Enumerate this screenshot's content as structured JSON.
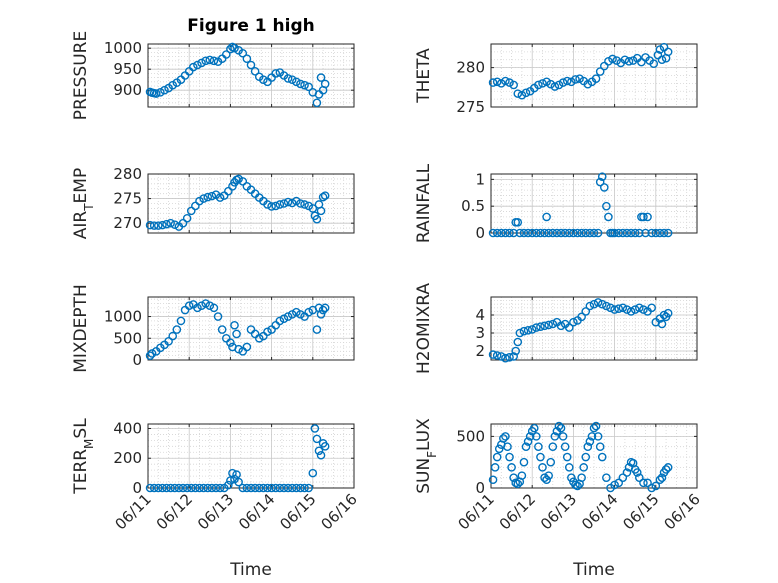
{
  "figure_title": "Figure 1 high",
  "xlabel": "Time",
  "x_ticks": [
    "06/11",
    "06/12",
    "06/13",
    "06/14",
    "06/15",
    "06/16"
  ],
  "marker_color": "#0072BD",
  "chart_data": [
    {
      "id": "pressure",
      "type": "scatter",
      "title": "Figure 1 high",
      "ylabel": "PRESSURE",
      "xlim": [
        0,
        5
      ],
      "ylim": [
        860,
        1010
      ],
      "yticks": [
        900,
        950,
        1000
      ],
      "grid": true,
      "minor_grid": true,
      "x": [
        0.05,
        0.1,
        0.15,
        0.2,
        0.3,
        0.4,
        0.5,
        0.6,
        0.7,
        0.8,
        0.9,
        1.0,
        1.1,
        1.2,
        1.3,
        1.4,
        1.5,
        1.6,
        1.7,
        1.8,
        1.9,
        2.0,
        2.05,
        2.1,
        2.2,
        2.3,
        2.4,
        2.5,
        2.6,
        2.7,
        2.8,
        2.9,
        3.0,
        3.1,
        3.2,
        3.3,
        3.4,
        3.5,
        3.6,
        3.7,
        3.8,
        3.9,
        4.0,
        4.1,
        4.15,
        4.2,
        4.25,
        4.3
      ],
      "y": [
        896,
        894,
        893,
        892,
        895,
        900,
        905,
        912,
        918,
        925,
        935,
        945,
        955,
        960,
        965,
        970,
        972,
        970,
        968,
        975,
        985,
        998,
        1003,
        1000,
        995,
        988,
        975,
        960,
        945,
        932,
        925,
        920,
        930,
        940,
        942,
        935,
        928,
        925,
        920,
        915,
        912,
        908,
        895,
        870,
        890,
        930,
        900,
        915
      ]
    },
    {
      "id": "theta",
      "type": "scatter",
      "ylabel": "THETA",
      "xlim": [
        0,
        5
      ],
      "ylim": [
        275,
        283
      ],
      "yticks": [
        275,
        280
      ],
      "grid": true,
      "minor_grid": true,
      "x": [
        0.05,
        0.15,
        0.25,
        0.35,
        0.45,
        0.55,
        0.65,
        0.75,
        0.85,
        0.95,
        1.05,
        1.15,
        1.25,
        1.35,
        1.45,
        1.55,
        1.65,
        1.75,
        1.85,
        1.95,
        2.05,
        2.15,
        2.25,
        2.35,
        2.45,
        2.55,
        2.65,
        2.75,
        2.85,
        2.95,
        3.05,
        3.15,
        3.25,
        3.35,
        3.45,
        3.55,
        3.65,
        3.75,
        3.85,
        3.95,
        4.05,
        4.1,
        4.15,
        4.2,
        4.25,
        4.3
      ],
      "y": [
        278.1,
        278.2,
        278.0,
        278.3,
        278.1,
        277.8,
        276.7,
        276.5,
        276.8,
        277.0,
        277.4,
        277.8,
        278.0,
        278.2,
        277.9,
        277.6,
        277.8,
        278.1,
        278.3,
        278.2,
        278.5,
        278.6,
        278.3,
        277.9,
        278.2,
        278.6,
        279.5,
        280.2,
        280.8,
        281.1,
        280.9,
        280.6,
        281.0,
        280.8,
        280.9,
        281.2,
        280.7,
        281.3,
        280.9,
        280.5,
        281.6,
        282.3,
        281.0,
        282.6,
        281.2,
        282.0
      ]
    },
    {
      "id": "air_temp",
      "type": "scatter",
      "ylabel": "AIR_TEMP",
      "xlim": [
        0,
        5
      ],
      "ylim": [
        268,
        280
      ],
      "yticks": [
        270,
        275,
        280
      ],
      "grid": true,
      "minor_grid": true,
      "x": [
        0.05,
        0.15,
        0.25,
        0.35,
        0.45,
        0.55,
        0.65,
        0.75,
        0.85,
        0.95,
        1.05,
        1.15,
        1.25,
        1.35,
        1.45,
        1.55,
        1.65,
        1.75,
        1.85,
        1.95,
        2.05,
        2.1,
        2.15,
        2.2,
        2.3,
        2.4,
        2.5,
        2.6,
        2.7,
        2.8,
        2.9,
        3.0,
        3.1,
        3.2,
        3.3,
        3.4,
        3.5,
        3.6,
        3.7,
        3.8,
        3.9,
        4.0,
        4.05,
        4.1,
        4.15,
        4.2,
        4.25,
        4.3
      ],
      "y": [
        269.6,
        269.5,
        269.5,
        269.6,
        269.8,
        270.0,
        269.7,
        269.3,
        270.0,
        271.0,
        272.5,
        273.5,
        274.5,
        275.0,
        275.3,
        275.5,
        275.8,
        275.2,
        275.6,
        276.5,
        277.5,
        278.3,
        278.8,
        279.0,
        278.5,
        277.5,
        276.8,
        276.0,
        275.2,
        274.5,
        273.8,
        273.4,
        273.5,
        273.8,
        274.0,
        274.3,
        274.1,
        274.5,
        274.0,
        273.8,
        273.5,
        273.0,
        271.5,
        270.8,
        273.8,
        272.5,
        275.3,
        275.6
      ]
    },
    {
      "id": "rainfall",
      "type": "scatter",
      "ylabel": "RAINFALL",
      "xlim": [
        0,
        5
      ],
      "ylim": [
        0,
        1.1
      ],
      "yticks": [
        0,
        0.5,
        1
      ],
      "grid": true,
      "minor_grid": true,
      "x": [
        0.05,
        0.15,
        0.25,
        0.35,
        0.45,
        0.55,
        0.6,
        0.65,
        0.7,
        0.8,
        0.9,
        1.0,
        1.1,
        1.2,
        1.3,
        1.35,
        1.4,
        1.5,
        1.6,
        1.7,
        1.8,
        1.9,
        2.0,
        2.1,
        2.2,
        2.3,
        2.4,
        2.5,
        2.6,
        2.65,
        2.7,
        2.75,
        2.8,
        2.85,
        2.9,
        2.95,
        3.0,
        3.1,
        3.2,
        3.3,
        3.4,
        3.5,
        3.6,
        3.65,
        3.7,
        3.75,
        3.8,
        3.9,
        4.0,
        4.1,
        4.2,
        4.3
      ],
      "y": [
        0,
        0,
        0,
        0,
        0,
        0,
        0.2,
        0.2,
        0,
        0,
        0,
        0,
        0,
        0,
        0,
        0.3,
        0,
        0,
        0,
        0,
        0,
        0,
        0,
        0,
        0,
        0,
        0,
        0,
        0,
        0.95,
        1.05,
        0.85,
        0.5,
        0.3,
        0,
        0,
        0,
        0,
        0,
        0,
        0,
        0,
        0,
        0.3,
        0.3,
        0,
        0.3,
        0,
        0,
        0,
        0,
        0
      ]
    },
    {
      "id": "mixdepth",
      "type": "scatter",
      "ylabel": "MIXDEPTH",
      "xlim": [
        0,
        5
      ],
      "ylim": [
        0,
        1450
      ],
      "yticks": [
        0,
        500,
        1000
      ],
      "grid": true,
      "minor_grid": true,
      "x": [
        0.05,
        0.1,
        0.2,
        0.3,
        0.4,
        0.5,
        0.6,
        0.7,
        0.8,
        0.9,
        1.0,
        1.1,
        1.2,
        1.3,
        1.4,
        1.5,
        1.6,
        1.7,
        1.8,
        1.9,
        2.0,
        2.05,
        2.1,
        2.15,
        2.2,
        2.3,
        2.4,
        2.5,
        2.6,
        2.7,
        2.8,
        2.9,
        3.0,
        3.1,
        3.2,
        3.3,
        3.4,
        3.5,
        3.6,
        3.7,
        3.8,
        3.9,
        4.0,
        4.1,
        4.15,
        4.2,
        4.25,
        4.3
      ],
      "y": [
        100,
        150,
        200,
        280,
        350,
        430,
        550,
        700,
        900,
        1150,
        1250,
        1280,
        1200,
        1250,
        1300,
        1250,
        1200,
        1000,
        700,
        500,
        400,
        300,
        800,
        600,
        250,
        200,
        300,
        700,
        600,
        500,
        550,
        650,
        700,
        800,
        900,
        950,
        1000,
        1050,
        1100,
        1050,
        1000,
        1100,
        1150,
        700,
        1200,
        1050,
        1150,
        1200
      ]
    },
    {
      "id": "h2omixra",
      "type": "scatter",
      "ylabel": "H2OMIXRA",
      "xlim": [
        0,
        5
      ],
      "ylim": [
        1.5,
        5
      ],
      "yticks": [
        2,
        3,
        4
      ],
      "grid": true,
      "minor_grid": true,
      "x": [
        0.05,
        0.15,
        0.25,
        0.35,
        0.45,
        0.55,
        0.6,
        0.65,
        0.7,
        0.8,
        0.9,
        1.0,
        1.1,
        1.2,
        1.3,
        1.4,
        1.5,
        1.6,
        1.7,
        1.8,
        1.9,
        2.0,
        2.1,
        2.2,
        2.3,
        2.4,
        2.5,
        2.6,
        2.7,
        2.8,
        2.9,
        3.0,
        3.1,
        3.2,
        3.3,
        3.4,
        3.5,
        3.6,
        3.7,
        3.8,
        3.9,
        4.0,
        4.1,
        4.15,
        4.2,
        4.25,
        4.3
      ],
      "y": [
        1.8,
        1.75,
        1.7,
        1.6,
        1.65,
        1.7,
        2.0,
        2.5,
        3.0,
        3.1,
        3.15,
        3.2,
        3.3,
        3.35,
        3.4,
        3.45,
        3.5,
        3.6,
        3.4,
        3.5,
        3.3,
        3.6,
        3.7,
        3.9,
        4.2,
        4.5,
        4.6,
        4.7,
        4.6,
        4.5,
        4.4,
        4.3,
        4.35,
        4.4,
        4.3,
        4.2,
        4.3,
        4.4,
        4.3,
        4.2,
        4.4,
        3.6,
        3.8,
        3.5,
        4.0,
        3.9,
        4.1
      ]
    },
    {
      "id": "terr_msl",
      "type": "scatter",
      "ylabel": "TERR_MSL",
      "xlim": [
        0,
        5
      ],
      "ylim": [
        0,
        430
      ],
      "yticks": [
        0,
        200,
        400
      ],
      "grid": true,
      "minor_grid": true,
      "x": [
        0.05,
        0.15,
        0.25,
        0.35,
        0.45,
        0.55,
        0.65,
        0.75,
        0.85,
        0.95,
        1.05,
        1.15,
        1.25,
        1.35,
        1.45,
        1.55,
        1.65,
        1.75,
        1.85,
        1.95,
        2.0,
        2.05,
        2.1,
        2.15,
        2.2,
        2.3,
        2.4,
        2.5,
        2.6,
        2.7,
        2.8,
        2.9,
        3.0,
        3.1,
        3.2,
        3.3,
        3.4,
        3.5,
        3.6,
        3.7,
        3.8,
        3.9,
        4.0,
        4.05,
        4.1,
        4.15,
        4.2,
        4.25,
        4.3
      ],
      "y": [
        0,
        0,
        0,
        0,
        0,
        0,
        0,
        0,
        0,
        0,
        0,
        0,
        0,
        0,
        0,
        0,
        0,
        0,
        0,
        20,
        50,
        100,
        60,
        90,
        40,
        0,
        0,
        0,
        0,
        0,
        0,
        0,
        0,
        0,
        0,
        0,
        0,
        0,
        0,
        0,
        0,
        0,
        100,
        400,
        330,
        250,
        220,
        300,
        280
      ]
    },
    {
      "id": "sun_flux",
      "type": "scatter",
      "ylabel": "SUN_FLUX",
      "xlim": [
        0,
        5
      ],
      "ylim": [
        0,
        620
      ],
      "yticks": [
        0,
        500
      ],
      "grid": true,
      "minor_grid": true,
      "x": [
        0.05,
        0.1,
        0.15,
        0.2,
        0.25,
        0.3,
        0.35,
        0.4,
        0.45,
        0.5,
        0.55,
        0.6,
        0.65,
        0.7,
        0.75,
        0.8,
        0.85,
        0.9,
        0.95,
        1.0,
        1.05,
        1.1,
        1.15,
        1.2,
        1.25,
        1.3,
        1.35,
        1.4,
        1.45,
        1.5,
        1.55,
        1.6,
        1.65,
        1.7,
        1.75,
        1.8,
        1.85,
        1.9,
        1.95,
        2.0,
        2.05,
        2.1,
        2.15,
        2.2,
        2.25,
        2.3,
        2.35,
        2.4,
        2.45,
        2.5,
        2.55,
        2.6,
        2.65,
        2.7,
        2.8,
        2.9,
        3.0,
        3.1,
        3.2,
        3.3,
        3.35,
        3.4,
        3.45,
        3.5,
        3.55,
        3.6,
        3.7,
        3.8,
        3.9,
        4.0,
        4.1,
        4.15,
        4.2,
        4.25,
        4.3
      ],
      "y": [
        80,
        200,
        300,
        380,
        420,
        480,
        500,
        400,
        300,
        200,
        100,
        50,
        40,
        60,
        120,
        250,
        400,
        450,
        500,
        550,
        580,
        500,
        400,
        300,
        200,
        100,
        80,
        120,
        250,
        400,
        500,
        550,
        600,
        580,
        500,
        400,
        300,
        200,
        100,
        60,
        30,
        20,
        40,
        100,
        200,
        300,
        400,
        450,
        500,
        580,
        600,
        500,
        400,
        300,
        100,
        0,
        30,
        50,
        100,
        150,
        200,
        250,
        240,
        180,
        150,
        100,
        50,
        50,
        0,
        20,
        80,
        100,
        150,
        180,
        200
      ]
    }
  ]
}
